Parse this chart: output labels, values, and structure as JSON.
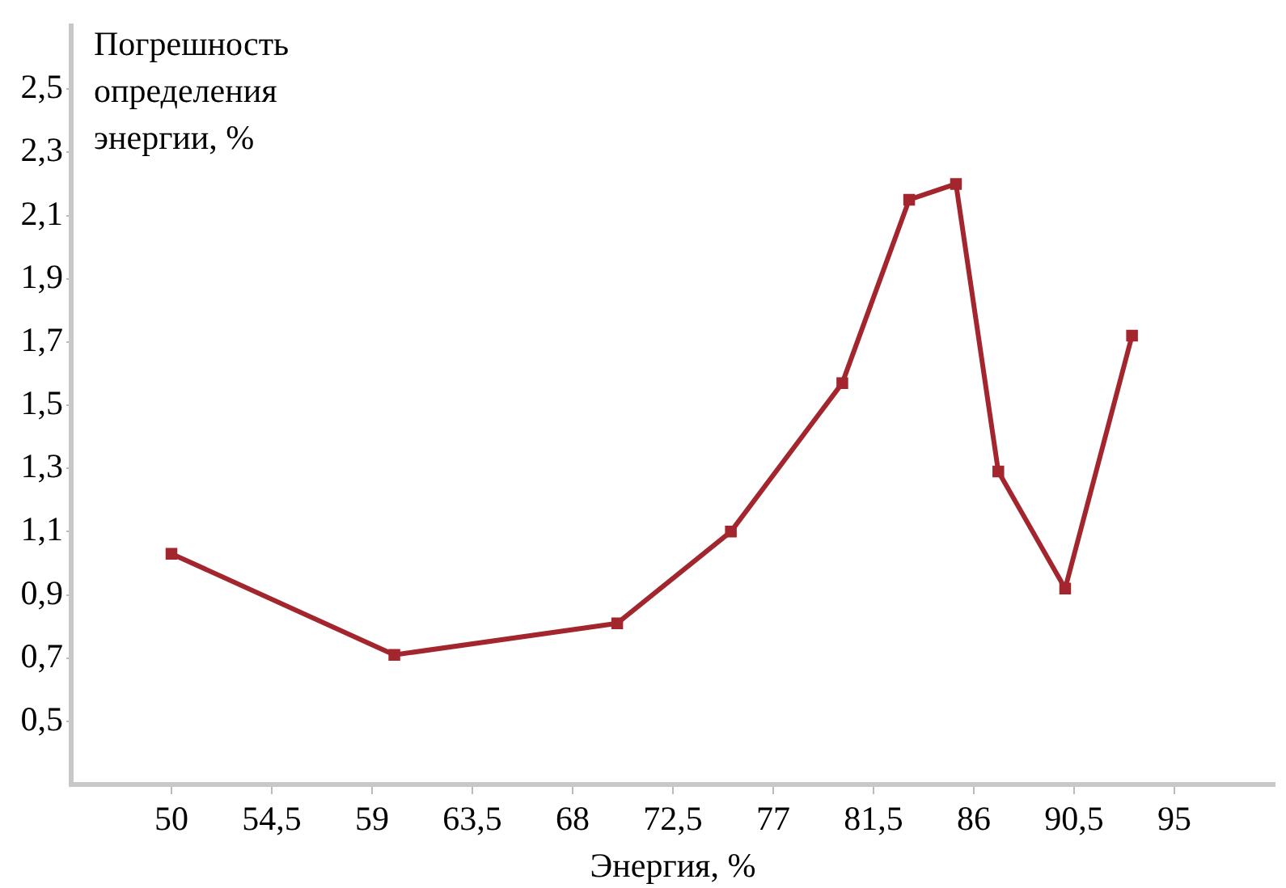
{
  "chart_data": {
    "type": "line",
    "xlabel": "Энергия, %",
    "ylabel": "Погрешность определения энергии, %",
    "x": [
      50,
      60,
      70,
      75.1,
      80.1,
      83.1,
      85.2,
      87.1,
      90.1,
      93.1
    ],
    "series": [
      {
        "color": "#a3262e",
        "values": [
          1.03,
          0.71,
          0.81,
          1.1,
          1.57,
          2.15,
          2.2,
          1.29,
          0.92,
          1.72
        ]
      }
    ],
    "xlim": [
      45.5,
      99.5
    ],
    "xticks": [
      50,
      {
        "value": 54.5,
        "label": "54,5"
      },
      59,
      {
        "value": 63.5,
        "label": "63,5"
      },
      68,
      {
        "value": 72.5,
        "label": "72,5"
      },
      77,
      {
        "value": 81.5,
        "label": "81,5"
      },
      86,
      {
        "value": 90.5,
        "label": "90,5"
      },
      95
    ],
    "ylim": [
      0.3,
      2.7
    ],
    "yticks": [
      {
        "value": 0.5,
        "label": "0,5"
      },
      {
        "value": 0.7,
        "label": "0,7"
      },
      {
        "value": 0.9,
        "label": "0,9"
      },
      {
        "value": 1.1,
        "label": "1,1"
      },
      {
        "value": 1.3,
        "label": "1,3"
      },
      {
        "value": 1.5,
        "label": "1,5"
      },
      {
        "value": 1.7,
        "label": "1,7"
      },
      {
        "value": 1.9,
        "label": "1,9"
      },
      {
        "value": 2.1,
        "label": "2,1"
      },
      {
        "value": 2.3,
        "label": "2,3"
      },
      {
        "value": 2.5,
        "label": "2,5"
      }
    ],
    "grid": false,
    "legend": false,
    "marker": "square",
    "line_style": "solid"
  }
}
